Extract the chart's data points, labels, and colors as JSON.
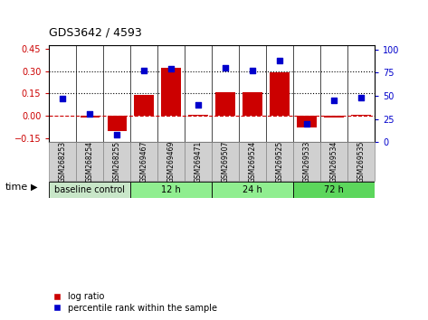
{
  "title": "GDS3642 / 4593",
  "samples": [
    "GSM268253",
    "GSM268254",
    "GSM268255",
    "GSM269467",
    "GSM269469",
    "GSM269471",
    "GSM269507",
    "GSM269524",
    "GSM269525",
    "GSM269533",
    "GSM269534",
    "GSM269535"
  ],
  "log_ratio": [
    0.0,
    -0.01,
    -0.1,
    0.14,
    0.32,
    0.005,
    0.16,
    0.16,
    0.29,
    -0.075,
    -0.01,
    0.01
  ],
  "percentile_rank": [
    47,
    30,
    8,
    77,
    79,
    40,
    80,
    77,
    88,
    20,
    45,
    48
  ],
  "ylim_left": [
    -0.175,
    0.475
  ],
  "ylim_right": [
    0,
    105
  ],
  "yticks_left": [
    -0.15,
    0.0,
    0.15,
    0.3,
    0.45
  ],
  "yticks_right": [
    0,
    25,
    50,
    75,
    100
  ],
  "hlines": [
    0.15,
    0.3
  ],
  "bar_color": "#cc0000",
  "dot_color": "#0000cc",
  "zero_line_color": "#cc0000",
  "hline_color": "black",
  "groups": [
    {
      "label": "baseline control",
      "start": 0,
      "end": 3,
      "color": "#c8e6c8"
    },
    {
      "label": "12 h",
      "start": 3,
      "end": 6,
      "color": "#90ee90"
    },
    {
      "label": "24 h",
      "start": 6,
      "end": 9,
      "color": "#90ee90"
    },
    {
      "label": "72 h",
      "start": 9,
      "end": 12,
      "color": "#5cd65c"
    }
  ],
  "time_label": "time",
  "legend_log_ratio": "log ratio",
  "legend_percentile": "percentile rank within the sample",
  "background_color": "#ffffff",
  "tick_label_color_left": "#cc0000",
  "tick_label_color_right": "#0000cc",
  "label_box_color": "#d0d0d0",
  "label_box_edge": "#888888"
}
